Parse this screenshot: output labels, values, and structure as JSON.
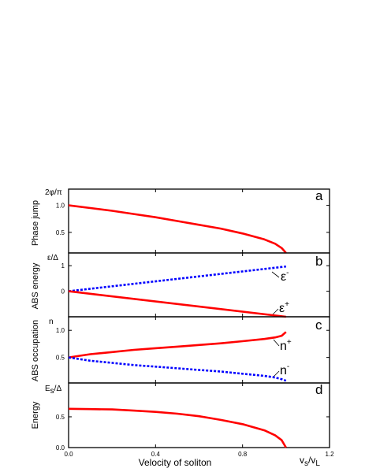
{
  "chart_data": [
    {
      "type": "line",
      "panel_label": "a",
      "ylabel": "Phase jump",
      "unit_label": "2φ/π",
      "ylim": [
        0.12,
        1.3
      ],
      "yticks": [
        "0.5",
        "1.0"
      ],
      "ytick_values": [
        0.5,
        1.0
      ],
      "series": [
        {
          "color": "#ff0000",
          "style": "solid",
          "x": [
            0,
            0.1,
            0.2,
            0.3,
            0.4,
            0.5,
            0.6,
            0.7,
            0.8,
            0.9,
            0.95,
            0.98,
            1.0
          ],
          "y": [
            1.0,
            0.95,
            0.9,
            0.84,
            0.78,
            0.71,
            0.64,
            0.57,
            0.48,
            0.37,
            0.29,
            0.21,
            0.12
          ]
        }
      ]
    },
    {
      "type": "line",
      "panel_label": "b",
      "ylabel": "ABS energy",
      "unit_label": "ε/Δ",
      "ylim": [
        -1,
        1.5
      ],
      "yticks": [
        "0",
        "1"
      ],
      "ytick_values": [
        0,
        1
      ],
      "annotations": [
        {
          "base": "ε",
          "sup": "-"
        },
        {
          "base": "ε",
          "sup": "+"
        }
      ],
      "series": [
        {
          "name": "ε-",
          "color": "#0000ff",
          "style": "dotted",
          "x": [
            0,
            1.0
          ],
          "y": [
            0,
            0.97
          ]
        },
        {
          "name": "ε+",
          "color": "#ff0000",
          "style": "solid",
          "x": [
            0,
            1.0
          ],
          "y": [
            0,
            -1.0
          ]
        }
      ]
    },
    {
      "type": "line",
      "panel_label": "c",
      "ylabel": "ABS occupation",
      "unit_label": "n",
      "ylim": [
        0.03,
        1.25
      ],
      "yticks": [
        "0.5",
        "1.0"
      ],
      "ytick_values": [
        0.5,
        1.0
      ],
      "annotations": [
        {
          "base": "n",
          "sup": "+"
        },
        {
          "base": "n",
          "sup": "-"
        }
      ],
      "series": [
        {
          "name": "n+",
          "color": "#ff0000",
          "style": "solid",
          "x": [
            0,
            0.1,
            0.2,
            0.3,
            0.4,
            0.5,
            0.6,
            0.7,
            0.8,
            0.9,
            0.95,
            0.98,
            1.0
          ],
          "y": [
            0.5,
            0.56,
            0.6,
            0.64,
            0.67,
            0.7,
            0.73,
            0.76,
            0.8,
            0.84,
            0.87,
            0.9,
            0.97
          ]
        },
        {
          "name": "n-",
          "color": "#0000ff",
          "style": "dotted",
          "x": [
            0,
            0.1,
            0.2,
            0.3,
            0.4,
            0.5,
            0.6,
            0.7,
            0.8,
            0.9,
            0.95,
            0.98,
            1.0
          ],
          "y": [
            0.5,
            0.44,
            0.4,
            0.36,
            0.33,
            0.3,
            0.27,
            0.24,
            0.2,
            0.16,
            0.13,
            0.1,
            0.07
          ]
        }
      ]
    },
    {
      "type": "line",
      "panel_label": "d",
      "ylabel": "Energy",
      "unit_label": "E",
      "unit_sub": "s",
      "unit_tail": "/Δ",
      "ylim": [
        0,
        1.05
      ],
      "yticks": [
        "0.0",
        "0.5"
      ],
      "ytick_values": [
        0,
        0.5
      ],
      "series": [
        {
          "color": "#ff0000",
          "style": "solid",
          "x": [
            0,
            0.1,
            0.2,
            0.3,
            0.4,
            0.5,
            0.6,
            0.7,
            0.8,
            0.9,
            0.95,
            0.98,
            1.0
          ],
          "y": [
            0.63,
            0.625,
            0.62,
            0.6,
            0.58,
            0.55,
            0.51,
            0.45,
            0.38,
            0.28,
            0.2,
            0.12,
            0.0
          ]
        }
      ]
    }
  ],
  "xaxis": {
    "xlabel": "Velocity of soliton",
    "xlim": [
      0,
      1.2
    ],
    "xticks": [
      "0.0",
      "0.4",
      "0.8",
      "1.2"
    ],
    "xtick_values": [
      0,
      0.4,
      0.8,
      1.2
    ],
    "unit_v": "v",
    "unit_s": "s",
    "unit_slash": "/v",
    "unit_L": "L"
  }
}
